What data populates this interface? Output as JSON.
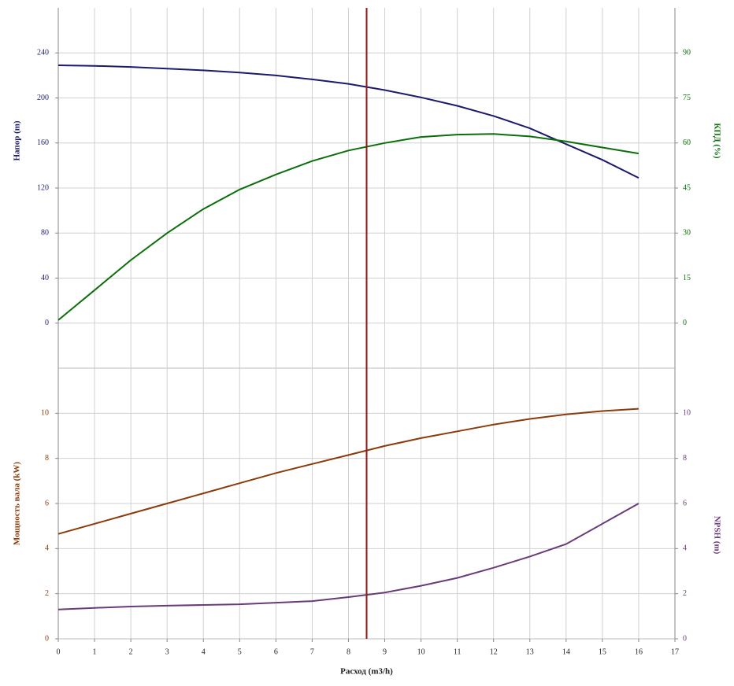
{
  "chart_data": [
    {
      "type": "line",
      "y_label": "Напор (m)",
      "y2_label": "КПД (%)",
      "x": [
        0,
        1,
        2,
        3,
        4,
        5,
        6,
        7,
        8,
        9,
        10,
        11,
        12,
        13,
        14,
        15,
        16
      ],
      "xlim": [
        0,
        17
      ],
      "ylim": [
        -40,
        280
      ],
      "yticks": [
        0,
        40,
        80,
        120,
        160,
        200,
        240
      ],
      "y2lim": [
        -15,
        105
      ],
      "y2ticks": [
        0,
        15,
        30,
        45,
        60,
        75,
        90
      ],
      "y_color": "#1a1a6e",
      "y2_color": "#0a6e0a",
      "grid": true,
      "vline": 8.5,
      "vline_color": "#8b1a1a",
      "series": [
        {
          "name": "Напор",
          "color": "#1a1a6e",
          "values": [
            229,
            228.5,
            227.5,
            226,
            224.5,
            222.5,
            220,
            216.5,
            212.5,
            207,
            200.5,
            193,
            184,
            173,
            159,
            145,
            129
          ]
        },
        {
          "name": "КПД",
          "color": "#0a6e0a",
          "axis": "y2",
          "values": [
            1,
            11,
            21,
            30,
            38,
            44.5,
            49.5,
            54,
            57.5,
            60,
            62,
            62.8,
            63,
            62.2,
            60.5,
            58.5,
            56.5
          ]
        }
      ]
    },
    {
      "type": "line",
      "x_label": "Расход (m3/h)",
      "y_label": "Мощность вала (kW)",
      "y2_label": "NPSH (m)",
      "x": [
        0,
        1,
        2,
        3,
        4,
        5,
        6,
        7,
        8,
        9,
        10,
        11,
        12,
        13,
        14,
        15,
        16
      ],
      "xlim": [
        0,
        17
      ],
      "xticks": [
        0,
        1,
        2,
        3,
        4,
        5,
        6,
        7,
        8,
        9,
        10,
        11,
        12,
        13,
        14,
        15,
        16,
        17
      ],
      "ylim": [
        0,
        12
      ],
      "yticks": [
        0,
        2,
        4,
        6,
        8,
        10
      ],
      "y2lim": [
        0,
        12
      ],
      "y2ticks": [
        0,
        2,
        4,
        6,
        8,
        10
      ],
      "y_color": "#8b3a0a",
      "y2_color": "#6b3a7a",
      "grid": true,
      "series": [
        {
          "name": "Мощность вала",
          "color": "#8b3a0a",
          "values": [
            4.65,
            5.1,
            5.55,
            6.0,
            6.45,
            6.9,
            7.35,
            7.75,
            8.15,
            8.55,
            8.9,
            9.2,
            9.5,
            9.75,
            9.95,
            10.1,
            10.2
          ]
        },
        {
          "name": "NPSH",
          "color": "#6b3a7a",
          "axis": "y2",
          "values": [
            1.3,
            1.37,
            1.43,
            1.47,
            1.5,
            1.53,
            1.6,
            1.67,
            1.85,
            2.05,
            2.35,
            2.7,
            3.15,
            3.65,
            4.2,
            5.1,
            6.0
          ]
        }
      ]
    }
  ]
}
